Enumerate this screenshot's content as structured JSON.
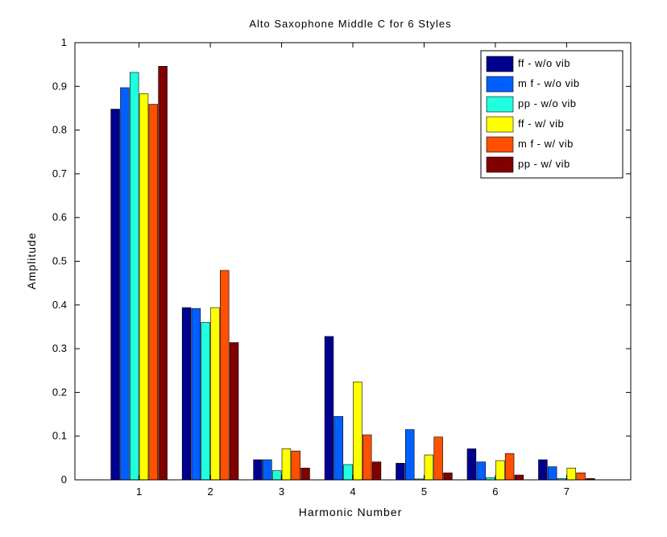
{
  "chart_data": {
    "type": "bar",
    "title": "Alto Saxophone Middle C for 6 Styles",
    "xlabel": "Harmonic Number",
    "ylabel": "Amplitude",
    "categories": [
      "1",
      "2",
      "3",
      "4",
      "5",
      "6",
      "7"
    ],
    "ylim": [
      0,
      1
    ],
    "yticks": [
      "0",
      "0.1",
      "0.2",
      "0.3",
      "0.4",
      "0.5",
      "0.6",
      "0.7",
      "0.8",
      "0.9",
      "1"
    ],
    "grid": false,
    "legend_position": "top-right",
    "series": [
      {
        "name": "ff - w/o vib",
        "color": "#00008f",
        "values": [
          0.848,
          0.394,
          0.046,
          0.328,
          0.038,
          0.071,
          0.046
        ]
      },
      {
        "name": "m f - w/o vib",
        "color": "#0060ff",
        "values": [
          0.897,
          0.392,
          0.046,
          0.145,
          0.115,
          0.041,
          0.03
        ]
      },
      {
        "name": "pp - w/o vib",
        "color": "#20ffdf",
        "values": [
          0.932,
          0.36,
          0.021,
          0.035,
          0.002,
          0.005,
          0.003
        ]
      },
      {
        "name": "ff - w/ vib",
        "color": "#ffff00",
        "values": [
          0.883,
          0.394,
          0.071,
          0.224,
          0.057,
          0.044,
          0.027
        ]
      },
      {
        "name": "m f - w/ vib",
        "color": "#ff5000",
        "values": [
          0.859,
          0.479,
          0.066,
          0.103,
          0.098,
          0.06,
          0.016
        ]
      },
      {
        "name": "pp - w/ vib",
        "color": "#800000",
        "values": [
          0.946,
          0.314,
          0.027,
          0.041,
          0.016,
          0.011,
          0.003
        ]
      }
    ]
  }
}
